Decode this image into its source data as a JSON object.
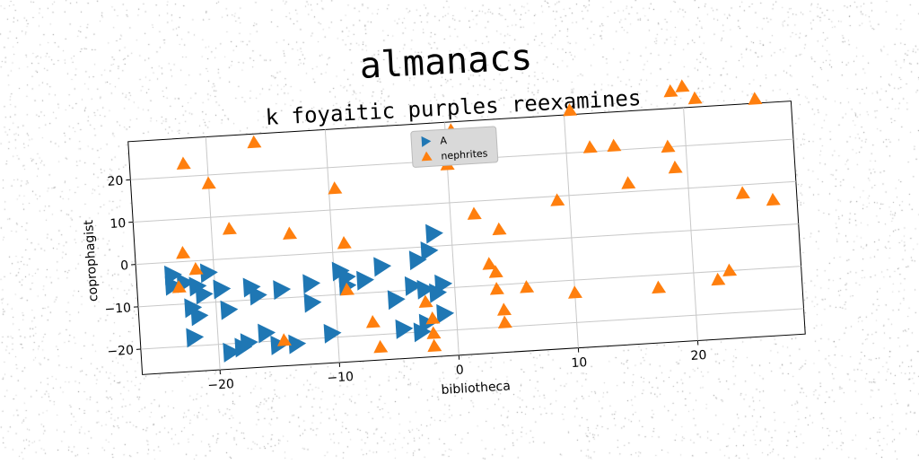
{
  "chart_data": {
    "type": "scatter",
    "title": "almanacs",
    "subtitle": "k foyaitic purples reexamines",
    "xlabel": "bibliotheca",
    "ylabel": "coprophagist",
    "xlim": [
      -26.5,
      29
    ],
    "ylim": [
      -26,
      29
    ],
    "xticks": [
      -20,
      -10,
      0,
      10,
      20
    ],
    "xtick_labels": [
      "−20",
      "−10",
      "0",
      "10",
      "20"
    ],
    "yticks": [
      -20,
      -10,
      0,
      10,
      20
    ],
    "ytick_labels": [
      "−20",
      "−10",
      "0",
      "10",
      "20"
    ],
    "grid": true,
    "legend_position": "top-center",
    "series": [
      {
        "name": "A",
        "marker": "triangle-right",
        "color": "#1f77b4",
        "points": [
          [
            -23.5,
            -3
          ],
          [
            -23.5,
            -5.5
          ],
          [
            -22.5,
            -5
          ],
          [
            -21.5,
            -6
          ],
          [
            -20.5,
            -3
          ],
          [
            -21,
            -8
          ],
          [
            -19.5,
            -7
          ],
          [
            -22,
            -11
          ],
          [
            -21.5,
            -13
          ],
          [
            -19,
            -12
          ],
          [
            -22,
            -18
          ],
          [
            -19,
            -22
          ],
          [
            -18,
            -21
          ],
          [
            -17.5,
            -20
          ],
          [
            -16,
            -18
          ],
          [
            -17,
            -7
          ],
          [
            -16.5,
            -9
          ],
          [
            -14.5,
            -8
          ],
          [
            -12,
            -7
          ],
          [
            -12,
            -11.5
          ],
          [
            -15,
            -21
          ],
          [
            -13.5,
            -21
          ],
          [
            -10.5,
            -19
          ],
          [
            -9.5,
            -4.5
          ],
          [
            -9,
            -6
          ],
          [
            -9,
            -8
          ],
          [
            -7.5,
            -7
          ],
          [
            -6,
            -4
          ],
          [
            -5,
            -12
          ],
          [
            -3,
            -3
          ],
          [
            -2,
            -1
          ],
          [
            -1.5,
            3
          ],
          [
            -2.5,
            -18
          ],
          [
            -1,
            -16
          ],
          [
            -3.5,
            -9
          ],
          [
            -2.5,
            -10
          ],
          [
            -1,
            -9
          ],
          [
            -1.5,
            -11
          ],
          [
            -3,
            -20
          ],
          [
            -4.5,
            -19
          ]
        ]
      },
      {
        "name": "nephrites",
        "marker": "triangle-up",
        "color": "#ff7f0e",
        "points": [
          [
            -16,
            27
          ],
          [
            -22,
            23
          ],
          [
            -20,
            18
          ],
          [
            -18.5,
            7
          ],
          [
            -13.5,
            5
          ],
          [
            -9.5,
            15
          ],
          [
            -9,
            2
          ],
          [
            -22.5,
            2
          ],
          [
            -23,
            -6
          ],
          [
            -21.5,
            -2
          ],
          [
            -9,
            -9
          ],
          [
            -7,
            -17
          ],
          [
            -6.5,
            -23
          ],
          [
            -14.5,
            -20
          ],
          [
            -2.5,
            -13
          ],
          [
            -2,
            -17
          ],
          [
            -2,
            -20.5
          ],
          [
            -2,
            -23.5
          ],
          [
            0,
            19
          ],
          [
            0.5,
            27
          ],
          [
            2,
            7
          ],
          [
            3,
            -5
          ],
          [
            3.5,
            -7
          ],
          [
            3.5,
            -11
          ],
          [
            4,
            3
          ],
          [
            4,
            -16
          ],
          [
            4,
            -19
          ],
          [
            6,
            -11
          ],
          [
            9,
            9
          ],
          [
            10,
            -13
          ],
          [
            10.5,
            30
          ],
          [
            12,
            21
          ],
          [
            14,
            21
          ],
          [
            15,
            12
          ],
          [
            17,
            -13
          ],
          [
            18.5,
            20
          ],
          [
            19,
            15
          ],
          [
            19,
            33
          ],
          [
            20,
            34
          ],
          [
            21,
            31
          ],
          [
            22,
            -12
          ],
          [
            23,
            -10
          ],
          [
            24.5,
            8
          ],
          [
            26,
            30
          ],
          [
            27,
            6
          ]
        ]
      }
    ]
  }
}
